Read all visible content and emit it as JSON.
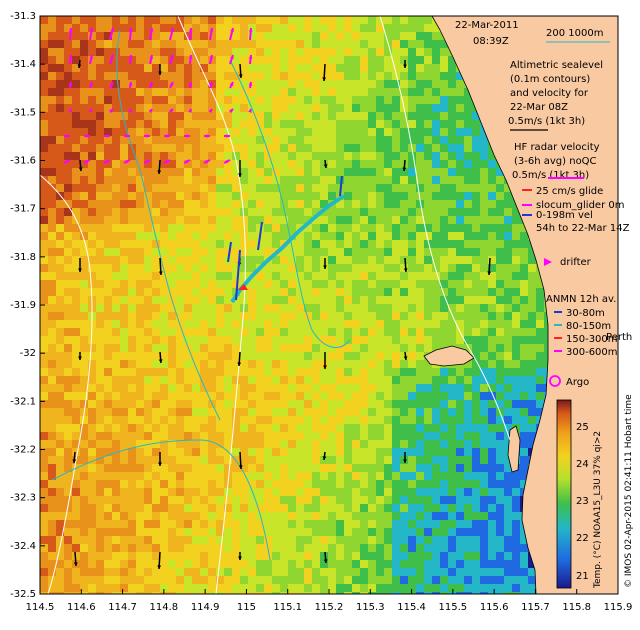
{
  "header": {
    "date": "22-Mar-2011",
    "time": "08:39Z"
  },
  "scale": {
    "label": "200  1000m",
    "line_color": "#22b8c8"
  },
  "axes": {
    "lat_ticks": [
      "-31.3",
      "-31.4",
      "-31.5",
      "-31.6",
      "-31.7",
      "-31.8",
      "-31.9",
      "-32",
      "-32.1",
      "-32.2",
      "-32.3",
      "-32.4",
      "-32.5"
    ],
    "lon_ticks": [
      "114.5",
      "114.6",
      "114.7",
      "114.8",
      "114.9",
      "115",
      "115.1",
      "115.2",
      "115.3",
      "115.4",
      "115.5",
      "115.6",
      "115.7",
      "115.8",
      "115.9"
    ]
  },
  "legend": {
    "sealevel": [
      "Altimetric sealevel",
      "(0.1m contours)",
      "and velocity for",
      "22-Mar 08Z",
      "0.5m/s (1kt 3h)"
    ],
    "hf_radar": [
      "HF radar velocity",
      "(3-6h avg) noQC",
      "0.5m/s (1kt 3h)"
    ],
    "glider": [
      "25 cm/s glide",
      "slocum_glider 0m",
      "0-198m vel",
      "54h to 22-Mar 14Z"
    ],
    "drifter": "drifter",
    "anmn": {
      "title": "ANMN 12h av.",
      "items": [
        "30-80m",
        "80-150m",
        "150-300m",
        "300-600m"
      ]
    },
    "argo": "Argo",
    "place": "Perth"
  },
  "colorbar": {
    "ticks": [
      "25",
      "24",
      "23",
      "22",
      "21"
    ],
    "label": "Temp. (°C) NOAA15_L3U 37% qi>2"
  },
  "footer": "© IMOS 02-Apr-2015 02:41:11 Hobart time",
  "colors": {
    "land": "#f9c9a2",
    "hf_arrow": "#ff00ff",
    "glider": "#1a3ad8"
  }
}
